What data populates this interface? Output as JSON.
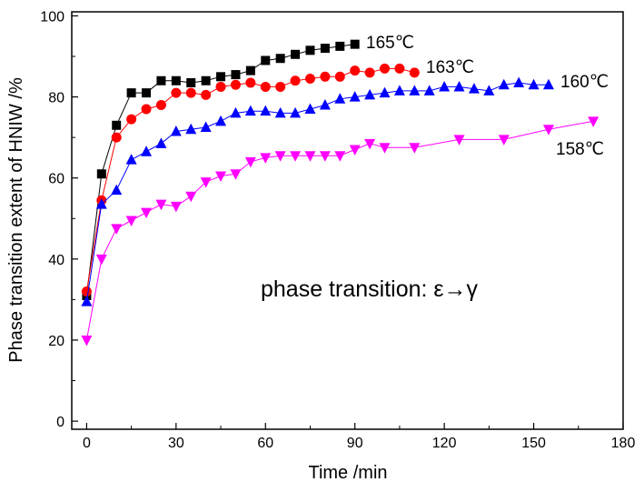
{
  "chart_data": {
    "type": "line",
    "title": "",
    "xlabel": "Time /min",
    "ylabel": "Phase transition extent of HNIW /%",
    "xlim": [
      -5,
      180
    ],
    "ylim": [
      -2,
      101
    ],
    "x_ticks": [
      0,
      30,
      60,
      90,
      120,
      150,
      180
    ],
    "y_ticks": [
      0,
      20,
      40,
      60,
      80,
      100
    ],
    "grid": false,
    "legend": "none (series labelled at line ends)",
    "annotation": "phase transition: ε→γ",
    "series": [
      {
        "name": "165℃",
        "color": "#000000",
        "marker": "square",
        "x": [
          0,
          5,
          10,
          15,
          20,
          25,
          30,
          35,
          40,
          45,
          50,
          55,
          60,
          65,
          70,
          75,
          80,
          85,
          90
        ],
        "y": [
          31,
          61,
          73,
          81,
          81,
          84,
          84,
          83.5,
          84,
          85,
          85.5,
          86.5,
          89,
          89.5,
          90.5,
          91.5,
          92,
          92.5,
          93
        ]
      },
      {
        "name": "163℃",
        "color": "#ff0000",
        "marker": "circle",
        "x": [
          0,
          5,
          10,
          15,
          20,
          25,
          30,
          35,
          40,
          45,
          50,
          55,
          60,
          65,
          70,
          75,
          80,
          85,
          90,
          95,
          100,
          105,
          110
        ],
        "y": [
          32,
          54.5,
          70,
          74.5,
          77,
          78,
          81,
          81,
          80.5,
          82.5,
          83,
          83.5,
          82.5,
          82.5,
          84,
          84.5,
          85,
          85,
          86.5,
          86,
          87,
          87,
          86
        ]
      },
      {
        "name": "160℃",
        "color": "#0000ff",
        "marker": "triangle-up",
        "x": [
          0,
          5,
          10,
          15,
          20,
          25,
          30,
          35,
          40,
          45,
          50,
          55,
          60,
          65,
          70,
          75,
          80,
          85,
          90,
          95,
          100,
          105,
          110,
          115,
          120,
          125,
          130,
          135,
          140,
          145,
          150,
          155
        ],
        "y": [
          29.5,
          53.5,
          57,
          64.5,
          66.5,
          68.5,
          71.5,
          72,
          72.5,
          74,
          76,
          76.5,
          76.5,
          76,
          76,
          77,
          78,
          79.5,
          80,
          80.5,
          81,
          81.5,
          81.5,
          81.5,
          82.5,
          82.5,
          82,
          81.5,
          83,
          83.5,
          83,
          83
        ]
      },
      {
        "name": "158℃",
        "color": "#ff00ff",
        "marker": "triangle-down",
        "x": [
          0,
          5,
          10,
          15,
          20,
          25,
          30,
          35,
          40,
          45,
          50,
          55,
          60,
          65,
          70,
          75,
          80,
          85,
          90,
          95,
          100,
          110,
          125,
          140,
          155,
          170
        ],
        "y": [
          20,
          40,
          47.5,
          49.5,
          51.5,
          53.5,
          53,
          55.5,
          59,
          60.5,
          61,
          64,
          65,
          65.5,
          65.5,
          65.5,
          65.5,
          65.5,
          67,
          68.5,
          67.5,
          67.5,
          69.5,
          69.5,
          72,
          74
        ]
      }
    ]
  }
}
